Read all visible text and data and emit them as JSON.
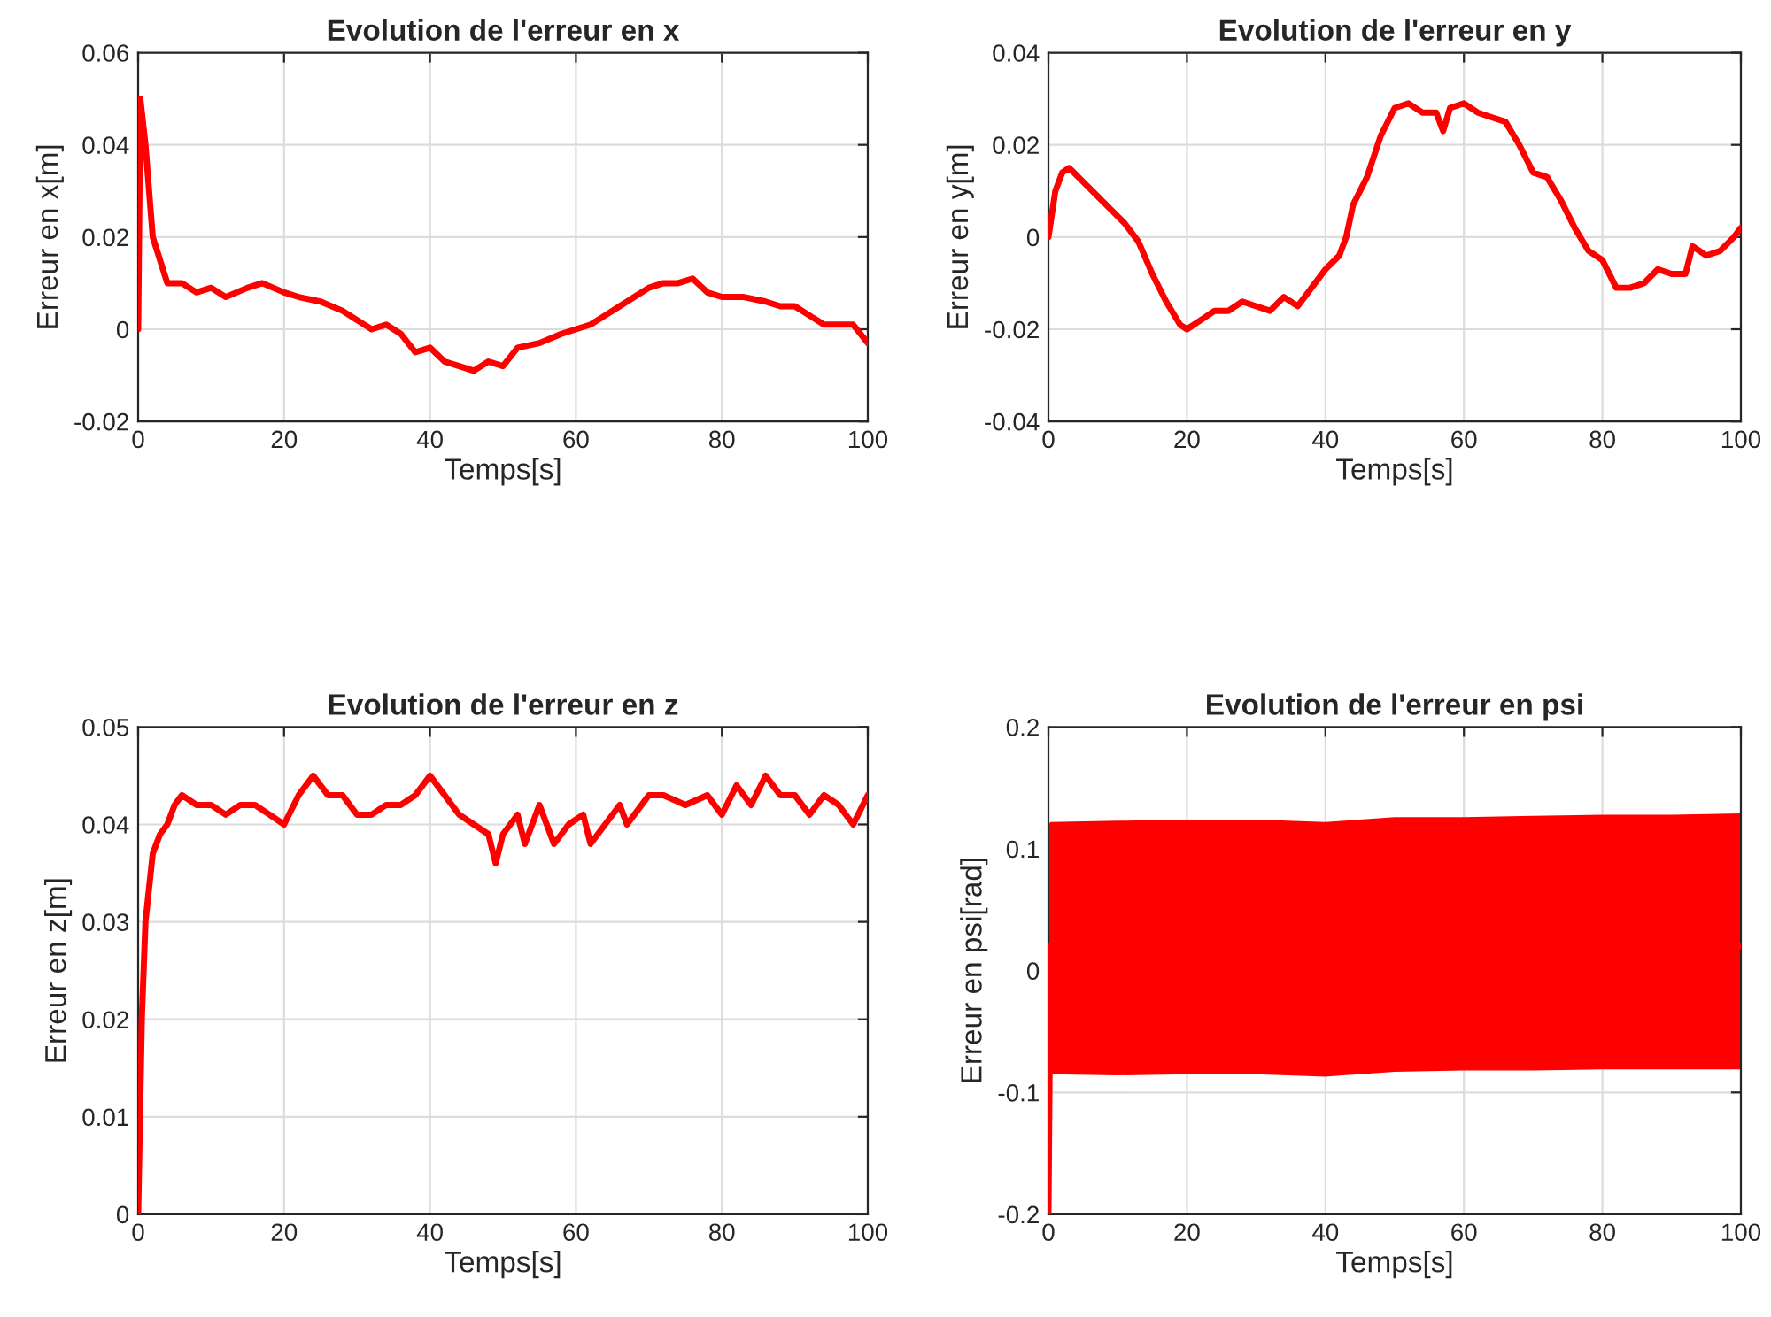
{
  "chart_data": [
    {
      "type": "line",
      "title": "Evolution de l'erreur en x",
      "xlabel": "Temps[s]",
      "ylabel": "Erreur en x[m]",
      "xlim": [
        0,
        100
      ],
      "xticks": [
        0,
        20,
        40,
        60,
        80,
        100
      ],
      "ylim": [
        -0.02,
        0.06
      ],
      "yticks": [
        -0.02,
        0,
        0.02,
        0.04,
        0.06
      ],
      "grid": true,
      "legend": false,
      "series": [
        {
          "color": "#ff0000",
          "x": [
            0,
            0.3,
            1,
            2,
            4,
            6,
            8,
            10,
            12,
            15,
            17,
            20,
            22,
            25,
            28,
            30,
            32,
            34,
            36,
            38,
            40,
            42,
            44,
            46,
            48,
            50,
            52,
            55,
            58,
            60,
            62,
            64,
            66,
            68,
            70,
            72,
            74,
            76,
            78,
            80,
            83,
            86,
            88,
            90,
            92,
            94,
            96,
            98,
            100
          ],
          "values": [
            0,
            0.05,
            0.04,
            0.02,
            0.01,
            0.01,
            0.008,
            0.009,
            0.007,
            0.009,
            0.01,
            0.008,
            0.007,
            0.006,
            0.004,
            0.002,
            0,
            0.001,
            -0.001,
            -0.005,
            -0.004,
            -0.007,
            -0.008,
            -0.009,
            -0.007,
            -0.008,
            -0.004,
            -0.003,
            -0.001,
            0,
            0.001,
            0.003,
            0.005,
            0.007,
            0.009,
            0.01,
            0.01,
            0.011,
            0.008,
            0.007,
            0.007,
            0.006,
            0.005,
            0.005,
            0.003,
            0.001,
            0.001,
            0.001,
            -0.003
          ]
        }
      ]
    },
    {
      "type": "line",
      "title": "Evolution de l'erreur en y",
      "xlabel": "Temps[s]",
      "ylabel": "Erreur en y[m]",
      "xlim": [
        0,
        100
      ],
      "xticks": [
        0,
        20,
        40,
        60,
        80,
        100
      ],
      "ylim": [
        -0.04,
        0.04
      ],
      "yticks": [
        -0.04,
        -0.02,
        0,
        0.02,
        0.04
      ],
      "grid": true,
      "legend": false,
      "series": [
        {
          "color": "#ff0000",
          "x": [
            0,
            1,
            2,
            3,
            5,
            7,
            9,
            11,
            13,
            15,
            17,
            19,
            20,
            22,
            24,
            26,
            28,
            30,
            32,
            34,
            36,
            38,
            40,
            42,
            43,
            44,
            46,
            48,
            50,
            52,
            54,
            56,
            57,
            58,
            60,
            62,
            64,
            66,
            68,
            70,
            72,
            74,
            76,
            78,
            80,
            82,
            84,
            86,
            88,
            90,
            92,
            93,
            95,
            97,
            99,
            100
          ],
          "values": [
            0,
            0.01,
            0.014,
            0.015,
            0.012,
            0.009,
            0.006,
            0.003,
            -0.001,
            -0.008,
            -0.014,
            -0.019,
            -0.02,
            -0.018,
            -0.016,
            -0.016,
            -0.014,
            -0.015,
            -0.016,
            -0.013,
            -0.015,
            -0.011,
            -0.007,
            -0.004,
            0,
            0.007,
            0.013,
            0.022,
            0.028,
            0.029,
            0.027,
            0.027,
            0.023,
            0.028,
            0.029,
            0.027,
            0.026,
            0.025,
            0.02,
            0.014,
            0.013,
            0.008,
            0.002,
            -0.003,
            -0.005,
            -0.011,
            -0.011,
            -0.01,
            -0.007,
            -0.008,
            -0.008,
            -0.002,
            -0.004,
            -0.003,
            0,
            0.002
          ]
        }
      ]
    },
    {
      "type": "line",
      "title": "Evolution de l'erreur en z",
      "xlabel": "Temps[s]",
      "ylabel": "Erreur en z[m]",
      "xlim": [
        0,
        100
      ],
      "xticks": [
        0,
        20,
        40,
        60,
        80,
        100
      ],
      "ylim": [
        0,
        0.05
      ],
      "yticks": [
        0,
        0.01,
        0.02,
        0.03,
        0.04,
        0.05
      ],
      "grid": true,
      "legend": false,
      "series": [
        {
          "color": "#ff0000",
          "x": [
            0,
            0.5,
            1,
            2,
            3,
            4,
            5,
            6,
            8,
            10,
            12,
            14,
            16,
            18,
            20,
            22,
            24,
            26,
            28,
            30,
            32,
            34,
            36,
            38,
            40,
            42,
            44,
            46,
            48,
            49,
            50,
            52,
            53,
            55,
            57,
            59,
            61,
            62,
            64,
            66,
            67,
            70,
            72,
            75,
            78,
            80,
            82,
            84,
            86,
            88,
            90,
            92,
            94,
            96,
            98,
            100
          ],
          "values": [
            0,
            0.02,
            0.03,
            0.037,
            0.039,
            0.04,
            0.042,
            0.043,
            0.042,
            0.042,
            0.041,
            0.042,
            0.042,
            0.041,
            0.04,
            0.043,
            0.045,
            0.043,
            0.043,
            0.041,
            0.041,
            0.042,
            0.042,
            0.043,
            0.045,
            0.043,
            0.041,
            0.04,
            0.039,
            0.036,
            0.039,
            0.041,
            0.038,
            0.042,
            0.038,
            0.04,
            0.041,
            0.038,
            0.04,
            0.042,
            0.04,
            0.043,
            0.043,
            0.042,
            0.043,
            0.041,
            0.044,
            0.042,
            0.045,
            0.043,
            0.043,
            0.041,
            0.043,
            0.042,
            0.04,
            0.043
          ]
        }
      ]
    },
    {
      "type": "line",
      "title": "Evolution de l'erreur en psi",
      "xlabel": "Temps[s]",
      "ylabel": "Erreur en psi[rad]",
      "xlim": [
        0,
        100
      ],
      "xticks": [
        0,
        20,
        40,
        60,
        80,
        100
      ],
      "ylim": [
        -0.2,
        0.2
      ],
      "yticks": [
        -0.2,
        -0.1,
        0,
        0.1,
        0.2
      ],
      "grid": true,
      "legend": false,
      "series": [
        {
          "color": "#ff0000",
          "x": [
            0,
            0.3,
            10,
            20,
            30,
            40,
            50,
            60,
            70,
            80,
            90,
            100
          ],
          "values": [
            -0.2,
            0.02,
            0.02,
            0.02,
            0.02,
            0.02,
            0.02,
            0.02,
            0.02,
            0.02,
            0.02,
            0.02
          ],
          "lower": [
            -0.2,
            -0.085,
            -0.086,
            -0.085,
            -0.085,
            -0.087,
            -0.083,
            -0.082,
            -0.082,
            -0.081,
            -0.081,
            -0.081
          ],
          "upper": [
            0.12,
            0.122,
            0.123,
            0.124,
            0.124,
            0.122,
            0.126,
            0.126,
            0.127,
            0.128,
            0.128,
            0.129
          ]
        }
      ]
    }
  ]
}
